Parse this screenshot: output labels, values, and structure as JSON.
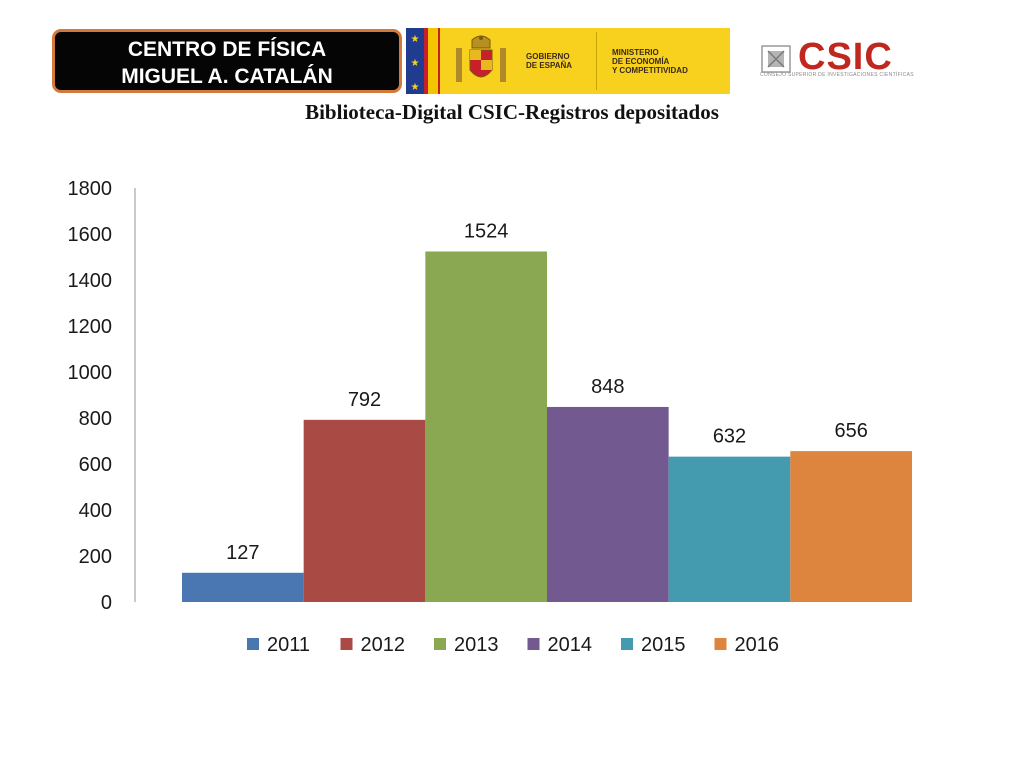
{
  "header": {
    "center_line1": "CENTRO DE FÍSICA",
    "center_line2": "MIGUEL A. CATALÁN",
    "gov_name": [
      "GOBIERNO",
      "DE ESPAÑA"
    ],
    "ministry_name": [
      "MINISTERIO",
      "DE ECONOMÍA",
      "Y COMPETITIVIDAD"
    ],
    "csic_logo_text": "CSIC",
    "csic_subtitle": "CONSEJO SUPERIOR DE INVESTIGACIONES CIENTÍFICAS"
  },
  "colors": {
    "badge_border": "#d27a3b",
    "banner_yellow": "#f7d11e",
    "csic_red": "#c0281f"
  },
  "chart_data": {
    "type": "bar",
    "title": "Biblioteca-Digital CSIC-Registros depositados",
    "xlabel": "",
    "ylabel": "",
    "ylim": [
      0,
      1800
    ],
    "yticks": [
      0,
      200,
      400,
      600,
      800,
      1000,
      1200,
      1400,
      1600,
      1800
    ],
    "grid": false,
    "legend_position": "bottom",
    "series": [
      {
        "name": "2011",
        "value": 127,
        "color": "#4a77b1"
      },
      {
        "name": "2012",
        "value": 792,
        "color": "#aa4a45"
      },
      {
        "name": "2013",
        "value": 1524,
        "color": "#8aa852"
      },
      {
        "name": "2014",
        "value": 848,
        "color": "#725a90"
      },
      {
        "name": "2015",
        "value": 632,
        "color": "#449aaf"
      },
      {
        "name": "2016",
        "value": 656,
        "color": "#dd843f"
      }
    ]
  }
}
